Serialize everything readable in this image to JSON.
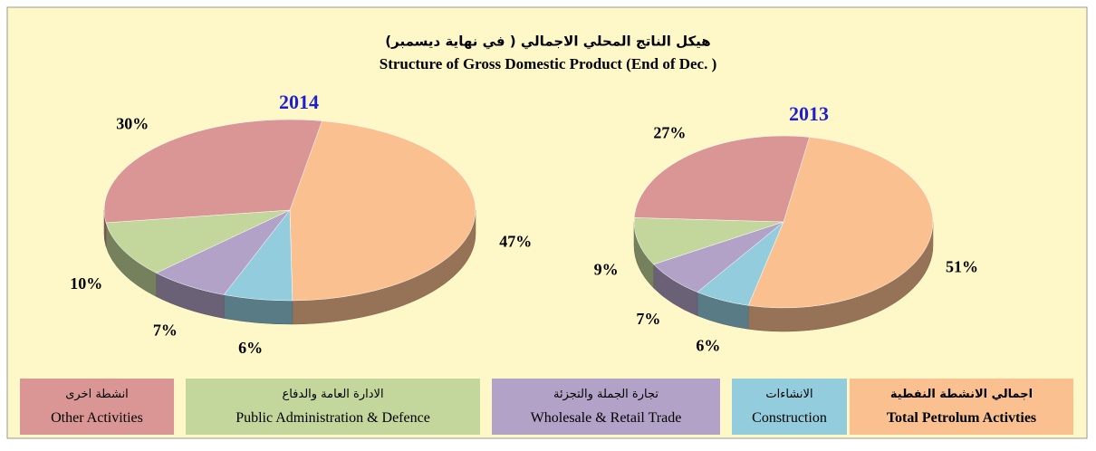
{
  "title": {
    "ar": "هيكل الناتج المحلي الاجمالي ( في نهاية ديسمبر)",
    "en": "Structure of Gross Domestic Product (End of Dec. )"
  },
  "legend": [
    {
      "ar": "اجمالي الانشطة النفطية",
      "en": "Total Petrolum Activties"
    },
    {
      "ar": "الانشاءات",
      "en": "Construction"
    },
    {
      "ar": "تجارة الجملة والتجزئة",
      "en": "Wholesale & Retail Trade"
    },
    {
      "ar": "الادارة العامة والدفاع",
      "en": "Public Administration & Defence"
    },
    {
      "ar": "انشطة اخرى",
      "en": "Other Activities"
    }
  ],
  "chart_data": [
    {
      "type": "pie",
      "title": "2014",
      "values": [
        47,
        6,
        7,
        10,
        30
      ],
      "value_labels": [
        "47%",
        "6%",
        "7%",
        "10%",
        "30%"
      ],
      "colors": [
        "#fac090",
        "#93cddd",
        "#b3a2c7",
        "#c3d69b",
        "#d99694"
      ]
    },
    {
      "type": "pie",
      "title": "2013",
      "values": [
        51,
        6,
        7,
        9,
        27
      ],
      "value_labels": [
        "51%",
        "6%",
        "7%",
        "9%",
        "27%"
      ],
      "colors": [
        "#fac090",
        "#93cddd",
        "#b3a2c7",
        "#c3d69b",
        "#d99694"
      ]
    }
  ]
}
